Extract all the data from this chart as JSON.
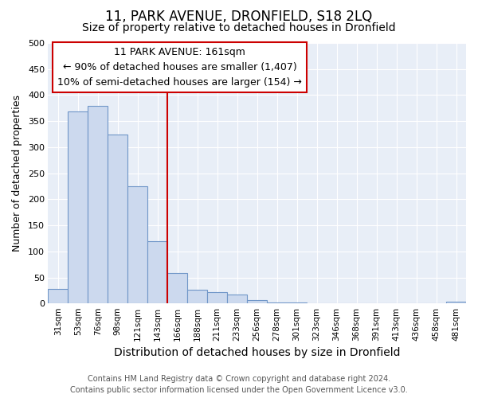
{
  "title": "11, PARK AVENUE, DRONFIELD, S18 2LQ",
  "subtitle": "Size of property relative to detached houses in Dronfield",
  "xlabel": "Distribution of detached houses by size in Dronfield",
  "ylabel": "Number of detached properties",
  "categories": [
    "31sqm",
    "53sqm",
    "76sqm",
    "98sqm",
    "121sqm",
    "143sqm",
    "166sqm",
    "188sqm",
    "211sqm",
    "233sqm",
    "256sqm",
    "278sqm",
    "301sqm",
    "323sqm",
    "346sqm",
    "368sqm",
    "391sqm",
    "413sqm",
    "436sqm",
    "458sqm",
    "481sqm"
  ],
  "values": [
    28,
    368,
    380,
    325,
    225,
    120,
    58,
    27,
    22,
    17,
    7,
    2,
    2,
    1,
    1,
    1,
    1,
    1,
    1,
    1,
    4
  ],
  "bar_color": "#ccd9ee",
  "bar_edge_color": "#7096c8",
  "vline_color": "#cc0000",
  "vline_pos": 6.0,
  "annotation_title": "11 PARK AVENUE: 161sqm",
  "annotation_line1": "← 90% of detached houses are smaller (1,407)",
  "annotation_line2": "10% of semi-detached houses are larger (154) →",
  "annotation_box_color": "#cc0000",
  "ylim": [
    0,
    500
  ],
  "yticks": [
    0,
    50,
    100,
    150,
    200,
    250,
    300,
    350,
    400,
    450,
    500
  ],
  "footer_line1": "Contains HM Land Registry data © Crown copyright and database right 2024.",
  "footer_line2": "Contains public sector information licensed under the Open Government Licence v3.0.",
  "plot_bg_color": "#e8eef7",
  "grid_color": "#ffffff",
  "title_fontsize": 12,
  "subtitle_fontsize": 10,
  "annotation_fontsize": 9,
  "ylabel_fontsize": 9,
  "xlabel_fontsize": 10,
  "footer_fontsize": 7
}
